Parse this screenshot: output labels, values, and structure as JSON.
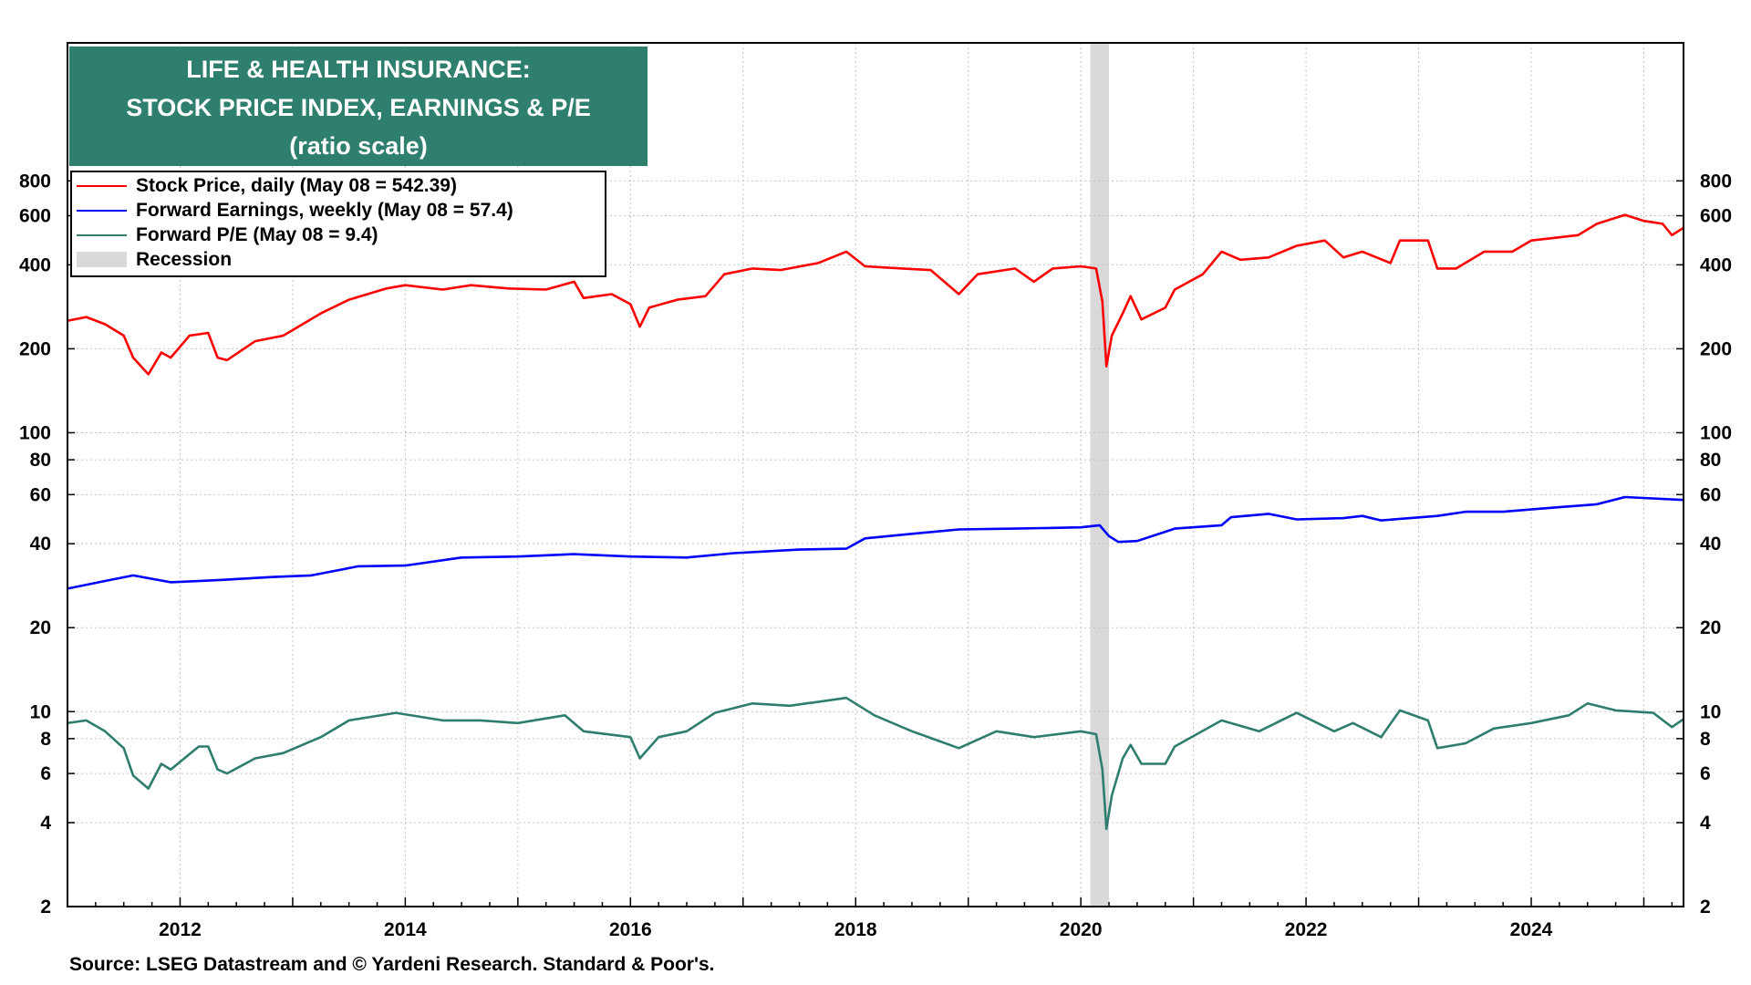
{
  "chart_data": {
    "type": "line",
    "title_lines": [
      "LIFE & HEALTH INSURANCE:",
      "STOCK PRICE INDEX, EARNINGS & P/E",
      "(ratio scale)"
    ],
    "title_box_color": "#2f7f6f",
    "y_scale": "log",
    "ylim": [
      2,
      2500
    ],
    "xlim": [
      "2011-01-01",
      "2025-05-08"
    ],
    "x_ticks": [
      "2012",
      "2014",
      "2016",
      "2018",
      "2020",
      "2022",
      "2024"
    ],
    "y_ticks": [
      800,
      600,
      400,
      200,
      100,
      80,
      60,
      40,
      20,
      10,
      8,
      6,
      4,
      2
    ],
    "grid": true,
    "legend_placement": "top-left",
    "series": [
      {
        "name": "Stock Price, daily (May 08 = 542.39)",
        "color": "#ff0000",
        "points": [
          [
            "2011-01",
            252
          ],
          [
            "2011-03",
            260
          ],
          [
            "2011-05",
            245
          ],
          [
            "2011-07",
            223
          ],
          [
            "2011-08",
            186
          ],
          [
            "2011-09-20",
            162
          ],
          [
            "2011-11",
            194
          ],
          [
            "2011-12",
            186
          ],
          [
            "2012-02",
            223
          ],
          [
            "2012-04",
            228
          ],
          [
            "2012-05",
            186
          ],
          [
            "2012-06",
            182
          ],
          [
            "2012-09",
            213
          ],
          [
            "2012-12",
            223
          ],
          [
            "2013-04",
            268
          ],
          [
            "2013-07",
            300
          ],
          [
            "2013-11",
            329
          ],
          [
            "2014-01",
            338
          ],
          [
            "2014-05",
            326
          ],
          [
            "2014-08",
            338
          ],
          [
            "2014-12",
            329
          ],
          [
            "2015-04",
            326
          ],
          [
            "2015-07",
            348
          ],
          [
            "2015-08",
            304
          ],
          [
            "2015-11",
            314
          ],
          [
            "2016-01",
            289
          ],
          [
            "2016-02",
            240
          ],
          [
            "2016-03",
            281
          ],
          [
            "2016-06",
            300
          ],
          [
            "2016-09",
            309
          ],
          [
            "2016-11",
            370
          ],
          [
            "2017-02",
            388
          ],
          [
            "2017-05",
            383
          ],
          [
            "2017-09",
            406
          ],
          [
            "2017-12",
            446
          ],
          [
            "2018-02",
            395
          ],
          [
            "2018-06",
            388
          ],
          [
            "2018-09",
            383
          ],
          [
            "2018-12",
            314
          ],
          [
            "2019-02",
            370
          ],
          [
            "2019-06",
            388
          ],
          [
            "2019-08",
            348
          ],
          [
            "2019-10",
            388
          ],
          [
            "2020-01",
            395
          ],
          [
            "2020-02-20",
            388
          ],
          [
            "2020-03-10",
            295
          ],
          [
            "2020-03-23",
            173
          ],
          [
            "2020-04-10",
            223
          ],
          [
            "2020-05-15",
            268
          ],
          [
            "2020-06-10",
            309
          ],
          [
            "2020-07-15",
            255
          ],
          [
            "2020-10",
            281
          ],
          [
            "2020-11",
            326
          ],
          [
            "2021-02",
            370
          ],
          [
            "2021-04",
            446
          ],
          [
            "2021-06",
            417
          ],
          [
            "2021-09",
            425
          ],
          [
            "2021-12",
            468
          ],
          [
            "2022-03",
            489
          ],
          [
            "2022-05",
            425
          ],
          [
            "2022-07",
            446
          ],
          [
            "2022-10",
            406
          ],
          [
            "2022-11",
            489
          ],
          [
            "2023-02",
            489
          ],
          [
            "2023-03",
            388
          ],
          [
            "2023-05",
            388
          ],
          [
            "2023-08",
            446
          ],
          [
            "2023-11",
            446
          ],
          [
            "2024-01",
            489
          ],
          [
            "2024-04",
            502
          ],
          [
            "2024-06",
            511
          ],
          [
            "2024-08",
            561
          ],
          [
            "2024-11",
            604
          ],
          [
            "2025-01",
            575
          ],
          [
            "2025-03",
            561
          ],
          [
            "2025-04",
            511
          ],
          [
            "2025-05-08",
            542.39
          ]
        ]
      },
      {
        "name": "Forward Earnings, weekly (May 08 = 57.4)",
        "color": "#0000ff",
        "points": [
          [
            "2011-01",
            27.6
          ],
          [
            "2011-05",
            29.4
          ],
          [
            "2011-08",
            30.8
          ],
          [
            "2011-12",
            29.1
          ],
          [
            "2012-05",
            29.6
          ],
          [
            "2012-11",
            30.4
          ],
          [
            "2013-03",
            30.8
          ],
          [
            "2013-08",
            33.2
          ],
          [
            "2014-01",
            33.4
          ],
          [
            "2014-07",
            35.7
          ],
          [
            "2015-01",
            36.0
          ],
          [
            "2015-07",
            36.7
          ],
          [
            "2016-01",
            36.0
          ],
          [
            "2016-07",
            35.7
          ],
          [
            "2016-12",
            37.0
          ],
          [
            "2017-07",
            38.1
          ],
          [
            "2017-12",
            38.4
          ],
          [
            "2018-02",
            41.8
          ],
          [
            "2018-07",
            43.4
          ],
          [
            "2018-12",
            45.0
          ],
          [
            "2019-06",
            45.3
          ],
          [
            "2020-01",
            45.8
          ],
          [
            "2020-03",
            46.6
          ],
          [
            "2020-04",
            42.6
          ],
          [
            "2020-05",
            40.6
          ],
          [
            "2020-07",
            40.9
          ],
          [
            "2020-11",
            45.3
          ],
          [
            "2021-04",
            46.6
          ],
          [
            "2021-05",
            49.8
          ],
          [
            "2021-09",
            51.2
          ],
          [
            "2021-12",
            48.9
          ],
          [
            "2022-05",
            49.4
          ],
          [
            "2022-07",
            50.3
          ],
          [
            "2022-09",
            48.5
          ],
          [
            "2023-03",
            50.3
          ],
          [
            "2023-06",
            52.1
          ],
          [
            "2023-10",
            52.1
          ],
          [
            "2024-04",
            54.1
          ],
          [
            "2024-08",
            55.4
          ],
          [
            "2024-11",
            58.8
          ],
          [
            "2025-05-08",
            57.4
          ]
        ]
      },
      {
        "name": "Forward P/E (May 08 = 9.4)",
        "color": "#2e7d6e",
        "points": [
          [
            "2011-01",
            9.1
          ],
          [
            "2011-03",
            9.3
          ],
          [
            "2011-05",
            8.5
          ],
          [
            "2011-07",
            7.4
          ],
          [
            "2011-08",
            5.9
          ],
          [
            "2011-09-20",
            5.3
          ],
          [
            "2011-11",
            6.5
          ],
          [
            "2011-12",
            6.2
          ],
          [
            "2012-03",
            7.5
          ],
          [
            "2012-04",
            7.5
          ],
          [
            "2012-05",
            6.2
          ],
          [
            "2012-06",
            6.0
          ],
          [
            "2012-09",
            6.8
          ],
          [
            "2012-12",
            7.1
          ],
          [
            "2013-04",
            8.1
          ],
          [
            "2013-07",
            9.3
          ],
          [
            "2013-12",
            9.9
          ],
          [
            "2014-05",
            9.3
          ],
          [
            "2014-09",
            9.3
          ],
          [
            "2015-01",
            9.1
          ],
          [
            "2015-06",
            9.7
          ],
          [
            "2015-08",
            8.5
          ],
          [
            "2016-01",
            8.1
          ],
          [
            "2016-02",
            6.8
          ],
          [
            "2016-04",
            8.1
          ],
          [
            "2016-07",
            8.5
          ],
          [
            "2016-10",
            9.9
          ],
          [
            "2017-02",
            10.7
          ],
          [
            "2017-06",
            10.5
          ],
          [
            "2017-12",
            11.2
          ],
          [
            "2018-03",
            9.7
          ],
          [
            "2018-07",
            8.5
          ],
          [
            "2018-12",
            7.4
          ],
          [
            "2019-04",
            8.5
          ],
          [
            "2019-08",
            8.1
          ],
          [
            "2020-01",
            8.5
          ],
          [
            "2020-02-20",
            8.3
          ],
          [
            "2020-03-10",
            6.2
          ],
          [
            "2020-03-23",
            3.8
          ],
          [
            "2020-04-10",
            5.0
          ],
          [
            "2020-05-15",
            6.8
          ],
          [
            "2020-06-10",
            7.6
          ],
          [
            "2020-07-15",
            6.5
          ],
          [
            "2020-10",
            6.5
          ],
          [
            "2020-11",
            7.5
          ],
          [
            "2021-04",
            9.3
          ],
          [
            "2021-08",
            8.5
          ],
          [
            "2021-12",
            9.9
          ],
          [
            "2022-04",
            8.5
          ],
          [
            "2022-06",
            9.1
          ],
          [
            "2022-09",
            8.1
          ],
          [
            "2022-11",
            10.1
          ],
          [
            "2023-02",
            9.3
          ],
          [
            "2023-03",
            7.4
          ],
          [
            "2023-06",
            7.7
          ],
          [
            "2023-09",
            8.7
          ],
          [
            "2024-01",
            9.1
          ],
          [
            "2024-05",
            9.7
          ],
          [
            "2024-07",
            10.7
          ],
          [
            "2024-10",
            10.1
          ],
          [
            "2025-02",
            9.9
          ],
          [
            "2025-04",
            8.8
          ],
          [
            "2025-05-08",
            9.4
          ]
        ]
      }
    ],
    "recessions": {
      "label": "Recession",
      "color": "#d9d9d9",
      "periods": [
        {
          "start": "2020-02",
          "end": "2020-04"
        }
      ]
    },
    "source": "Source: LSEG Datastream and © Yardeni Research. Standard & Poor's."
  }
}
